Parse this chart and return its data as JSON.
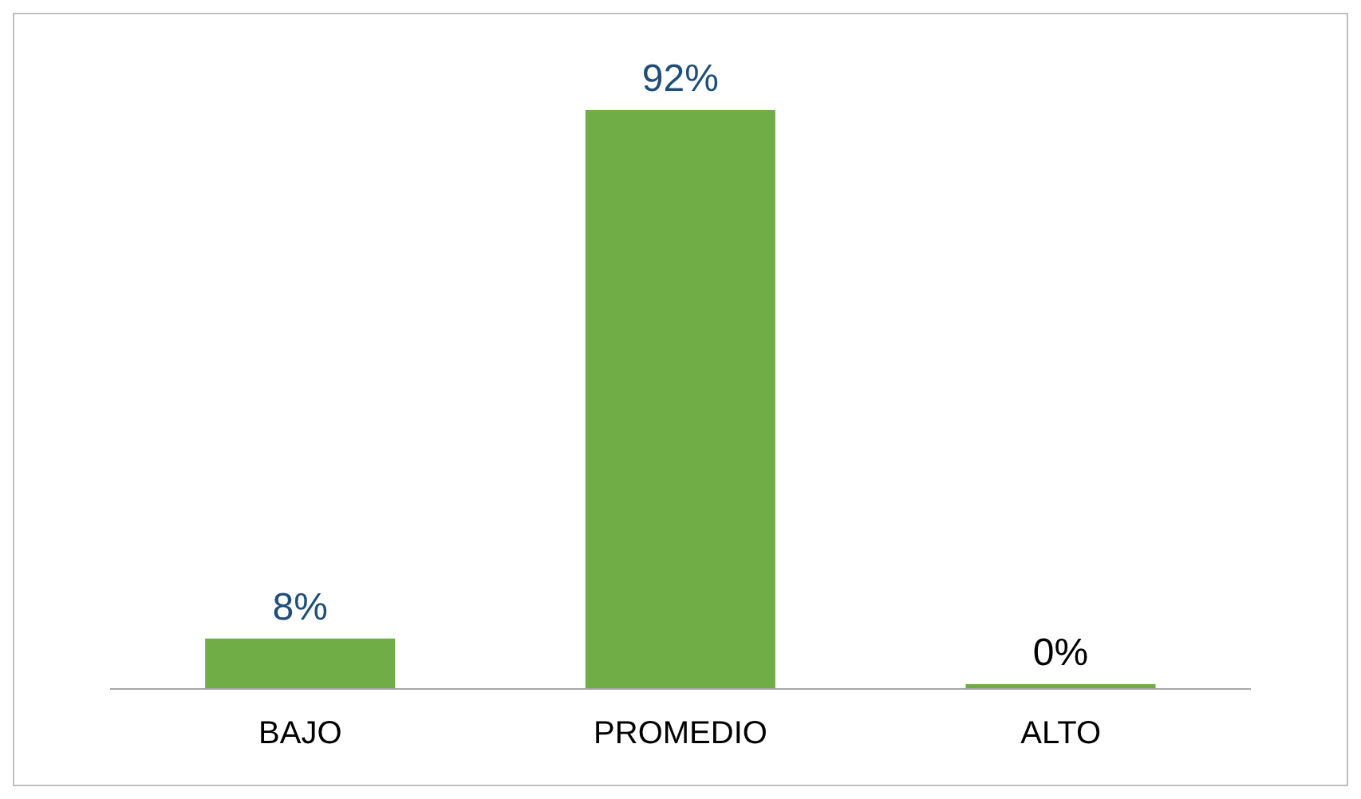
{
  "chart_data": {
    "type": "bar",
    "categories": [
      "BAJO",
      "PROMEDIO",
      "ALTO"
    ],
    "values": [
      8,
      92,
      0
    ],
    "value_labels": [
      "8%",
      "92%",
      "0%"
    ],
    "color": "#70ad47"
  }
}
